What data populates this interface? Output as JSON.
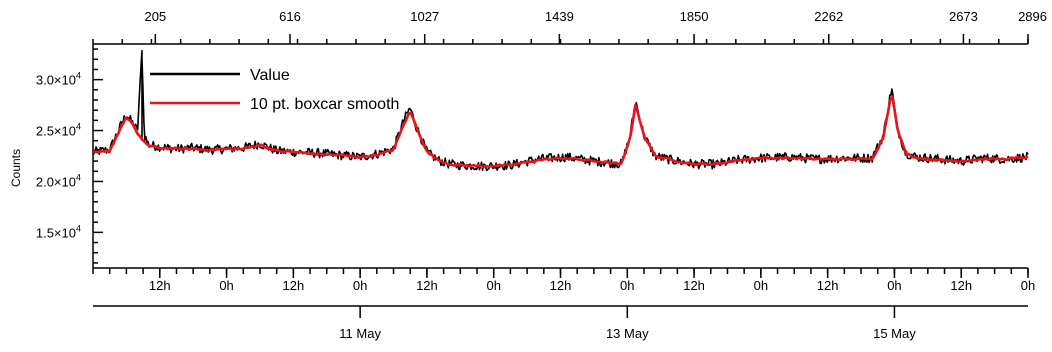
{
  "chart_data": {
    "type": "line",
    "title": "",
    "ylabel": "Counts",
    "xlabel": "",
    "ylim": [
      11500,
      33500
    ],
    "x_hours_range": [
      0,
      168
    ],
    "y_ticks": [
      {
        "value": 15000,
        "mantissa": "1.5",
        "exp": "4"
      },
      {
        "value": 20000,
        "mantissa": "2.0",
        "exp": "4"
      },
      {
        "value": 25000,
        "mantissa": "2.5",
        "exp": "4"
      },
      {
        "value": 30000,
        "mantissa": "3.0",
        "exp": "4"
      }
    ],
    "top_ticks": [
      {
        "label": "205",
        "hour": 11.2
      },
      {
        "label": "616",
        "hour": 35.4
      },
      {
        "label": "1027",
        "hour": 59.6
      },
      {
        "label": "1439",
        "hour": 83.8
      },
      {
        "label": "1850",
        "hour": 108.0
      },
      {
        "label": "2262",
        "hour": 132.2
      },
      {
        "label": "2673",
        "hour": 156.4
      },
      {
        "label": "2896",
        "hour": 168.0
      }
    ],
    "hour_ticks": [
      {
        "label": "12h",
        "hour": 12
      },
      {
        "label": "0h",
        "hour": 24
      },
      {
        "label": "12h",
        "hour": 36
      },
      {
        "label": "0h",
        "hour": 48
      },
      {
        "label": "12h",
        "hour": 60
      },
      {
        "label": "0h",
        "hour": 72
      },
      {
        "label": "12h",
        "hour": 84
      },
      {
        "label": "0h",
        "hour": 96
      },
      {
        "label": "12h",
        "hour": 108
      },
      {
        "label": "0h",
        "hour": 120
      },
      {
        "label": "12h",
        "hour": 132
      },
      {
        "label": "0h",
        "hour": 144
      },
      {
        "label": "12h",
        "hour": 156
      },
      {
        "label": "0h",
        "hour": 168
      }
    ],
    "date_ticks": [
      {
        "label": "11 May",
        "hour": 48
      },
      {
        "label": "13 May",
        "hour": 96
      },
      {
        "label": "15 May",
        "hour": 144
      }
    ],
    "series": [
      {
        "name": "Value",
        "color": "#000000",
        "x_hours": [
          0,
          3,
          5,
          6,
          7,
          8,
          8.8,
          9.2,
          10,
          12,
          15,
          18,
          21,
          24,
          27,
          30,
          33,
          36,
          40,
          44,
          48,
          51,
          54,
          56,
          57,
          58,
          60,
          62,
          64,
          66,
          70,
          75,
          80,
          85,
          90,
          95,
          96.5,
          97.5,
          99,
          101,
          104,
          108,
          112,
          116,
          120,
          125,
          130,
          135,
          140,
          142,
          143.5,
          144.5,
          146,
          148,
          152,
          156,
          160,
          164,
          168
        ],
        "values": [
          22900,
          23100,
          25500,
          26600,
          25800,
          25000,
          32900,
          24600,
          23600,
          23400,
          23200,
          23300,
          23100,
          23200,
          23300,
          23700,
          23000,
          22900,
          22800,
          22600,
          22400,
          22700,
          23200,
          26200,
          27200,
          25500,
          22900,
          22100,
          21700,
          21600,
          21500,
          21600,
          22200,
          22400,
          22000,
          21700,
          24500,
          27900,
          24500,
          22500,
          22100,
          21700,
          21700,
          22100,
          22300,
          22400,
          22200,
          22300,
          22300,
          24500,
          29200,
          25300,
          22800,
          22400,
          22200,
          22000,
          22300,
          22200,
          22400
        ]
      },
      {
        "name": "10 pt. boxcar smooth",
        "color": "#e8141c",
        "x_hours": [
          0,
          3,
          5,
          6,
          7,
          8,
          10,
          12,
          15,
          18,
          21,
          24,
          27,
          30,
          33,
          36,
          40,
          44,
          48,
          51,
          54,
          56,
          57,
          58,
          60,
          62,
          64,
          66,
          70,
          75,
          80,
          85,
          90,
          95,
          96.5,
          97.5,
          99,
          101,
          104,
          108,
          112,
          116,
          120,
          125,
          130,
          135,
          140,
          142,
          143.5,
          144.5,
          146,
          148,
          152,
          156,
          160,
          164,
          168
        ],
        "values": [
          22800,
          23000,
          25300,
          26300,
          25800,
          24600,
          23500,
          23300,
          23200,
          23200,
          23100,
          23200,
          23200,
          23600,
          23000,
          22900,
          22700,
          22600,
          22400,
          22600,
          23100,
          25800,
          26900,
          25500,
          22900,
          22100,
          21700,
          21600,
          21500,
          21600,
          22100,
          22300,
          22000,
          21700,
          24300,
          27600,
          24500,
          22500,
          22100,
          21700,
          21700,
          22100,
          22300,
          22300,
          22200,
          22200,
          22200,
          24300,
          28900,
          25200,
          22800,
          22300,
          22100,
          22000,
          22200,
          22200,
          22400
        ]
      }
    ]
  }
}
